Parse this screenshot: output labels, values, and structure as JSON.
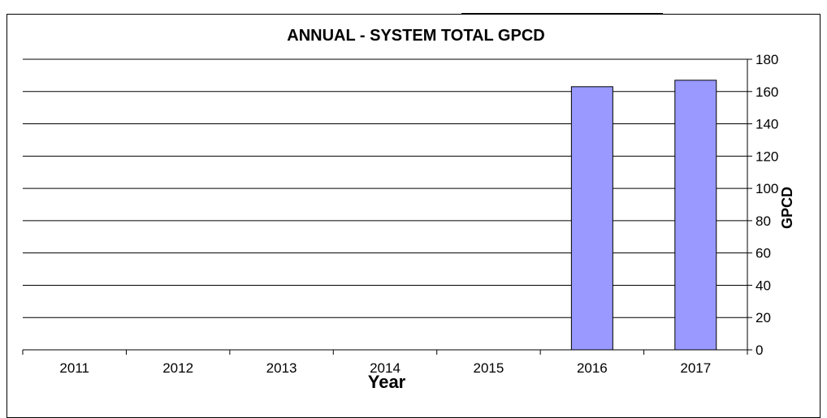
{
  "chart_data": {
    "type": "bar",
    "title": "ANNUAL - SYSTEM TOTAL GPCD",
    "xlabel": "Year",
    "ylabel": "GPCD",
    "categories": [
      "2011",
      "2012",
      "2013",
      "2014",
      "2015",
      "2016",
      "2017"
    ],
    "values": [
      null,
      null,
      null,
      null,
      null,
      163,
      167
    ],
    "ylim": [
      0,
      180
    ],
    "yticks": [
      0,
      20,
      40,
      60,
      80,
      100,
      120,
      140,
      160,
      180
    ],
    "grid": true,
    "y_axis_side": "right",
    "bar_color": "#9999FF",
    "legend": "none"
  }
}
